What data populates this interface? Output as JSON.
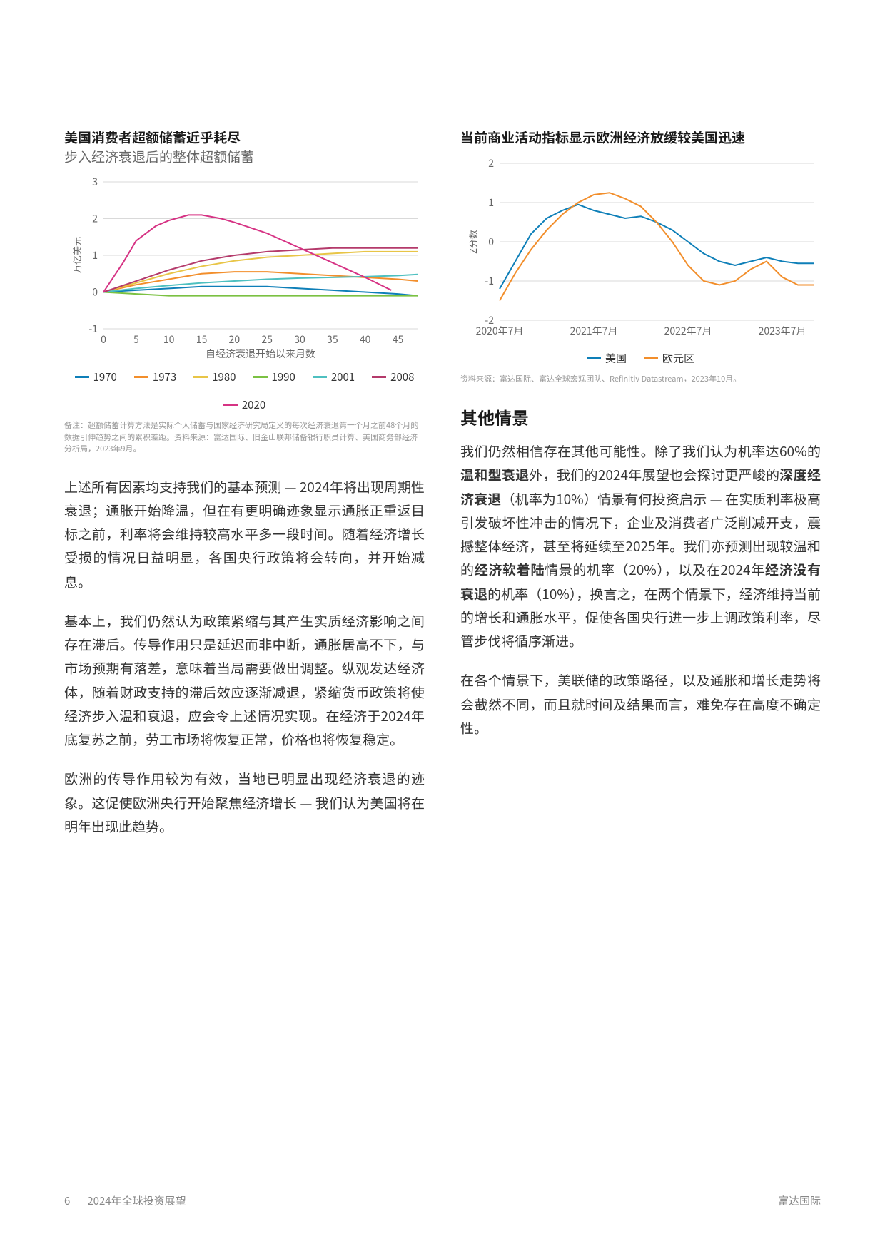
{
  "footer": {
    "page_number": "6",
    "doc_title": "2024年全球投资展望",
    "brand": "富达国际"
  },
  "left": {
    "chart1": {
      "title_bold": "美国消费者超额储蓄近乎耗尽",
      "subtitle": "步入经济衰退后的整体超额储蓄",
      "type": "line",
      "y_label": "万亿美元",
      "x_label": "自经济衰退开始以来月数",
      "x_ticks": [
        0,
        5,
        10,
        15,
        20,
        25,
        30,
        35,
        40,
        45
      ],
      "y_ticks": [
        -1,
        0,
        1,
        2,
        3
      ],
      "ylim": [
        -1,
        3
      ],
      "xlim": [
        0,
        48
      ],
      "grid_color": "#d9d9d9",
      "background_color": "#ffffff",
      "line_width": 2,
      "tick_fontsize": 14,
      "label_fontsize": 13,
      "series": [
        {
          "name": "1970",
          "color": "#0e7fb8",
          "data": [
            [
              0,
              0
            ],
            [
              5,
              0.05
            ],
            [
              10,
              0.1
            ],
            [
              15,
              0.15
            ],
            [
              20,
              0.15
            ],
            [
              25,
              0.15
            ],
            [
              30,
              0.1
            ],
            [
              35,
              0.05
            ],
            [
              40,
              0.0
            ],
            [
              45,
              -0.05
            ],
            [
              48,
              -0.1
            ]
          ]
        },
        {
          "name": "1973",
          "color": "#f28e2b",
          "data": [
            [
              0,
              0
            ],
            [
              5,
              0.2
            ],
            [
              10,
              0.35
            ],
            [
              15,
              0.5
            ],
            [
              20,
              0.55
            ],
            [
              25,
              0.55
            ],
            [
              30,
              0.5
            ],
            [
              35,
              0.45
            ],
            [
              40,
              0.4
            ],
            [
              45,
              0.35
            ],
            [
              48,
              0.3
            ]
          ]
        },
        {
          "name": "1980",
          "color": "#e8c547",
          "data": [
            [
              0,
              0
            ],
            [
              5,
              0.25
            ],
            [
              10,
              0.5
            ],
            [
              15,
              0.7
            ],
            [
              20,
              0.85
            ],
            [
              25,
              0.95
            ],
            [
              30,
              1.0
            ],
            [
              35,
              1.05
            ],
            [
              40,
              1.1
            ],
            [
              45,
              1.1
            ],
            [
              48,
              1.1
            ]
          ]
        },
        {
          "name": "1990",
          "color": "#7bc142",
          "data": [
            [
              0,
              0
            ],
            [
              5,
              -0.05
            ],
            [
              10,
              -0.1
            ],
            [
              15,
              -0.1
            ],
            [
              20,
              -0.1
            ],
            [
              25,
              -0.1
            ],
            [
              30,
              -0.1
            ],
            [
              35,
              -0.1
            ],
            [
              40,
              -0.1
            ],
            [
              45,
              -0.1
            ],
            [
              48,
              -0.1
            ]
          ]
        },
        {
          "name": "2001",
          "color": "#4ec0c0",
          "data": [
            [
              0,
              0
            ],
            [
              5,
              0.1
            ],
            [
              10,
              0.18
            ],
            [
              15,
              0.25
            ],
            [
              20,
              0.3
            ],
            [
              25,
              0.35
            ],
            [
              30,
              0.38
            ],
            [
              35,
              0.4
            ],
            [
              40,
              0.42
            ],
            [
              45,
              0.45
            ],
            [
              48,
              0.48
            ]
          ]
        },
        {
          "name": "2008",
          "color": "#b43a6b",
          "data": [
            [
              0,
              0
            ],
            [
              5,
              0.3
            ],
            [
              10,
              0.6
            ],
            [
              15,
              0.85
            ],
            [
              20,
              1.0
            ],
            [
              25,
              1.1
            ],
            [
              30,
              1.15
            ],
            [
              35,
              1.2
            ],
            [
              40,
              1.2
            ],
            [
              45,
              1.2
            ],
            [
              48,
              1.2
            ]
          ]
        },
        {
          "name": "2020",
          "color": "#d63384",
          "data": [
            [
              0,
              0
            ],
            [
              3,
              0.8
            ],
            [
              5,
              1.4
            ],
            [
              8,
              1.8
            ],
            [
              10,
              1.95
            ],
            [
              13,
              2.1
            ],
            [
              15,
              2.1
            ],
            [
              18,
              2.0
            ],
            [
              20,
              1.9
            ],
            [
              25,
              1.6
            ],
            [
              30,
              1.2
            ],
            [
              35,
              0.8
            ],
            [
              40,
              0.4
            ],
            [
              44,
              0.05
            ]
          ]
        }
      ],
      "footnote": "备注：超额储蓄计算方法是实际个人储蓄与国家经济研究局定义的每次经济衰退第一个月之前48个月的数据引伸趋势之间的累积差距。资料来源：富达国际、旧金山联邦储备银行职员计算、美国商务部经济分析局，2023年9月。"
    },
    "para1": "上述所有因素均支持我们的基本预测 — 2024年将出现周期性衰退；通胀开始降温，但在有更明确迹象显示通胀正重返目标之前，利率将会维持较高水平多一段时间。随着经济增长受损的情况日益明显，各国央行政策将会转向，并开始减息。",
    "para2": "基本上，我们仍然认为政策紧缩与其产生实质经济影响之间存在滞后。传导作用只是延迟而非中断，通胀居高不下，与市场预期有落差，意味着当局需要做出调整。纵观发达经济体，随着财政支持的滞后效应逐渐减退，紧缩货币政策将使经济步入温和衰退，应会令上述情况实现。在经济于2024年底复苏之前，劳工市场将恢复正常，价格也将恢复稳定。",
    "para3": "欧洲的传导作用较为有效，当地已明显出现经济衰退的迹象。这促使欧洲央行开始聚焦经济增长 — 我们认为美国将在明年出现此趋势。"
  },
  "right": {
    "chart2": {
      "title_bold": "当前商业活动指标显示欧洲经济放缓较美国迅速",
      "type": "line",
      "y_label": "Z分数",
      "x_ticks_labels": [
        "2020年7月",
        "2021年7月",
        "2022年7月",
        "2023年7月"
      ],
      "x_ticks_pos": [
        0,
        12,
        24,
        36
      ],
      "y_ticks": [
        -2,
        -1,
        0,
        1,
        2
      ],
      "ylim": [
        -2,
        2
      ],
      "xlim": [
        0,
        40
      ],
      "grid_color": "#d9d9d9",
      "background_color": "#ffffff",
      "line_width": 2,
      "tick_fontsize": 14,
      "label_fontsize": 13,
      "series": [
        {
          "name": "美国",
          "color": "#0e7fb8",
          "data": [
            [
              0,
              -1.2
            ],
            [
              2,
              -0.5
            ],
            [
              4,
              0.2
            ],
            [
              6,
              0.6
            ],
            [
              8,
              0.8
            ],
            [
              10,
              0.95
            ],
            [
              12,
              0.8
            ],
            [
              14,
              0.7
            ],
            [
              16,
              0.6
            ],
            [
              18,
              0.65
            ],
            [
              20,
              0.5
            ],
            [
              22,
              0.3
            ],
            [
              24,
              0.0
            ],
            [
              26,
              -0.3
            ],
            [
              28,
              -0.5
            ],
            [
              30,
              -0.6
            ],
            [
              32,
              -0.5
            ],
            [
              34,
              -0.4
            ],
            [
              36,
              -0.5
            ],
            [
              38,
              -0.55
            ],
            [
              40,
              -0.55
            ]
          ]
        },
        {
          "name": "欧元区",
          "color": "#f28e2b",
          "data": [
            [
              0,
              -1.5
            ],
            [
              2,
              -0.8
            ],
            [
              4,
              -0.2
            ],
            [
              6,
              0.3
            ],
            [
              8,
              0.7
            ],
            [
              10,
              1.0
            ],
            [
              12,
              1.2
            ],
            [
              14,
              1.25
            ],
            [
              16,
              1.1
            ],
            [
              18,
              0.9
            ],
            [
              20,
              0.5
            ],
            [
              22,
              0.0
            ],
            [
              24,
              -0.6
            ],
            [
              26,
              -1.0
            ],
            [
              28,
              -1.1
            ],
            [
              30,
              -1.0
            ],
            [
              32,
              -0.7
            ],
            [
              34,
              -0.5
            ],
            [
              36,
              -0.9
            ],
            [
              38,
              -1.1
            ],
            [
              40,
              -1.1
            ]
          ]
        }
      ],
      "footnote": "资料来源：富达国际、富达全球宏观团队、Refinitiv Datastream，2023年10月。"
    },
    "section_heading": "其他情景",
    "para1_parts": [
      {
        "t": "我们仍然相信存在其他可能性。除了我们认为机率达60%的",
        "b": false
      },
      {
        "t": "温和型衰退",
        "b": true
      },
      {
        "t": "外，我们的2024年展望也会探讨更严峻的",
        "b": false
      },
      {
        "t": "深度经济衰退",
        "b": true
      },
      {
        "t": "（机率为10%）情景有何投资启示 — 在实质利率极高引发破坏性冲击的情况下，企业及消费者广泛削减开支，震撼整体经济，甚至将延续至2025年。我们亦预测出现较温和的",
        "b": false
      },
      {
        "t": "经济软着陆",
        "b": true
      },
      {
        "t": "情景的机率（20%），以及在2024年",
        "b": false
      },
      {
        "t": "经济没有衰退",
        "b": true
      },
      {
        "t": "的机率（10%），换言之，在两个情景下，经济维持当前的增长和通胀水平，促使各国央行进一步上调政策利率，尽管步伐将循序渐进。",
        "b": false
      }
    ],
    "para2": "在各个情景下，美联储的政策路径，以及通胀和增长走势将会截然不同，而且就时间及结果而言，难免存在高度不确定性。"
  }
}
